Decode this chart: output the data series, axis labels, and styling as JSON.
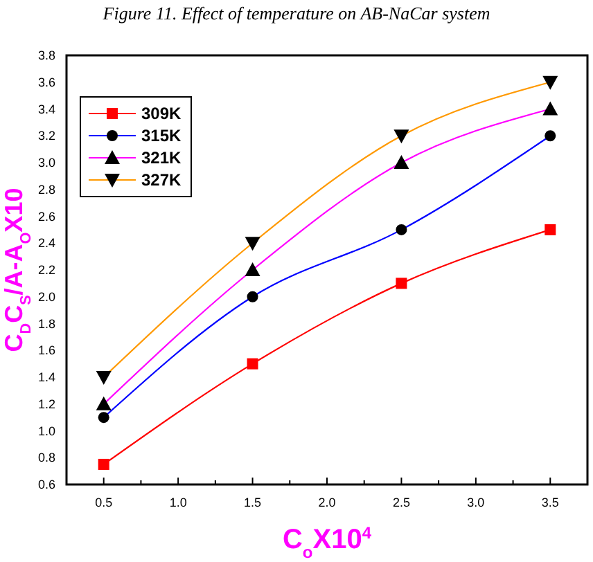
{
  "chart_data": {
    "type": "line",
    "title": "Figure 11. Effect of temperature on AB-NaCar system",
    "xlabel": "C$_{o}$X10$^{4}$",
    "ylabel": "C$_{D}$C$_{S}$/A-A$_{O}$X10",
    "x": [
      0.5,
      1.5,
      2.5,
      3.5
    ],
    "series": [
      {
        "name": "309K",
        "color": "#ff0000",
        "values": [
          0.75,
          1.5,
          2.1,
          2.5
        ],
        "marker": "square"
      },
      {
        "name": "315K",
        "color": "#0000ff",
        "values": [
          1.1,
          2.0,
          2.5,
          3.2
        ],
        "marker": "circle"
      },
      {
        "name": "321K",
        "color": "#ff00ff",
        "values": [
          1.2,
          2.2,
          3.0,
          3.4
        ],
        "marker": "triangle"
      },
      {
        "name": "327K",
        "color": "#ff9900",
        "values": [
          1.4,
          2.4,
          3.2,
          3.6
        ],
        "marker": "triangle-down"
      }
    ],
    "xlim": [
      0.25,
      3.75
    ],
    "xticks": [
      {
        "value": 0.5,
        "label": "0.5"
      },
      {
        "value": 1,
        "label": "1.0"
      },
      {
        "value": 1.5,
        "label": "1.5"
      },
      {
        "value": 2,
        "label": "2.0"
      },
      {
        "value": 2.5,
        "label": "2.5"
      },
      {
        "value": 3,
        "label": "3.0"
      },
      {
        "value": 3.5,
        "label": "3.5"
      }
    ],
    "ylim": [
      0.6,
      3.8
    ],
    "yticks": [
      0.6,
      0.8,
      {
        "value": 1,
        "label": "1.0"
      },
      1.2,
      1.4,
      1.6,
      1.8,
      {
        "value": 2,
        "label": "2.0"
      },
      2.2,
      2.4,
      2.6,
      2.8,
      {
        "value": 3,
        "label": "3.0"
      },
      3.2,
      3.4,
      3.6,
      3.8
    ],
    "grid": false,
    "legend": "top left"
  }
}
